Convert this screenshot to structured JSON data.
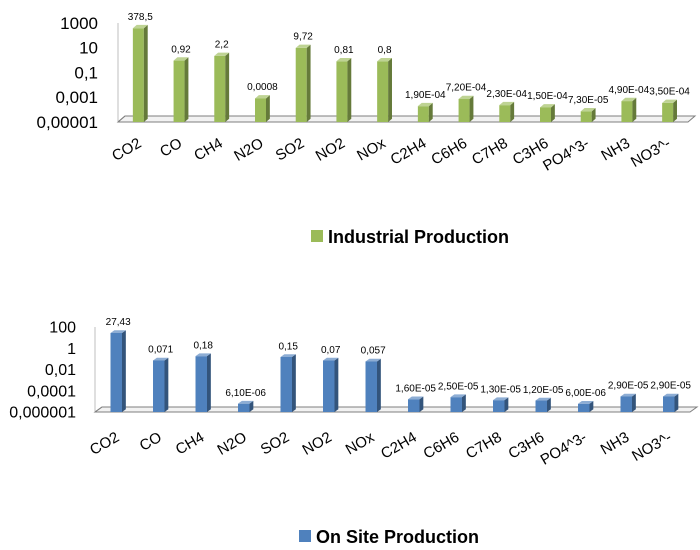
{
  "chart_data": [
    {
      "type": "bar",
      "style": "3d",
      "y_scale": "log",
      "categories": [
        "CO2",
        "CO",
        "CH4",
        "N2O",
        "SO2",
        "NO2",
        "NOx",
        "C2H4",
        "C6H6",
        "C7H8",
        "C3H6",
        "PO4^3-",
        "NH3",
        "NO3^-"
      ],
      "y_ticks": [
        "1000",
        "10",
        "0,1",
        "0,001",
        "0,00001"
      ],
      "ylim": [
        1e-05,
        1000
      ],
      "series": [
        {
          "name": "Industrial Production",
          "color": "#9bbb59",
          "values": [
            378.5,
            0.92,
            2.2,
            0.0008,
            9.72,
            0.81,
            0.8,
            0.00019,
            0.00072,
            0.00023,
            0.00015,
            7.3e-05,
            0.00049,
            0.00035
          ],
          "labels": [
            "378,5",
            "0,92",
            "2,2",
            "0,0008",
            "9,72",
            "0,81",
            "0,8",
            "1,90E-04",
            "7,20E-04",
            "2,30E-04",
            "1,50E-04",
            "7,30E-05",
            "4,90E-04",
            "3,50E-04"
          ]
        }
      ],
      "legend": "bottom"
    },
    {
      "type": "bar",
      "style": "3d",
      "y_scale": "log",
      "categories": [
        "CO2",
        "CO",
        "CH4",
        "N2O",
        "SO2",
        "NO2",
        "NOx",
        "C2H4",
        "C6H6",
        "C7H8",
        "C3H6",
        "PO4^3-",
        "NH3",
        "NO3^-"
      ],
      "y_ticks": [
        "100",
        "1",
        "0,01",
        "0,0001",
        "0,000001"
      ],
      "ylim": [
        1e-06,
        100
      ],
      "series": [
        {
          "name": "On Site Production",
          "color": "#4f81bd",
          "values": [
            27.43,
            0.071,
            0.18,
            6.1e-06,
            0.15,
            0.07,
            0.057,
            1.6e-05,
            2.5e-05,
            1.3e-05,
            1.2e-05,
            6e-06,
            2.9e-05,
            2.9e-05
          ],
          "labels": [
            "27,43",
            "0,071",
            "0,18",
            "6,10E-06",
            "0,15",
            "0,07",
            "0,057",
            "1,60E-05",
            "2,50E-05",
            "1,30E-05",
            "1,20E-05",
            "6,00E-06",
            "2,90E-05",
            "2,90E-05"
          ]
        }
      ],
      "legend": "bottom"
    }
  ]
}
